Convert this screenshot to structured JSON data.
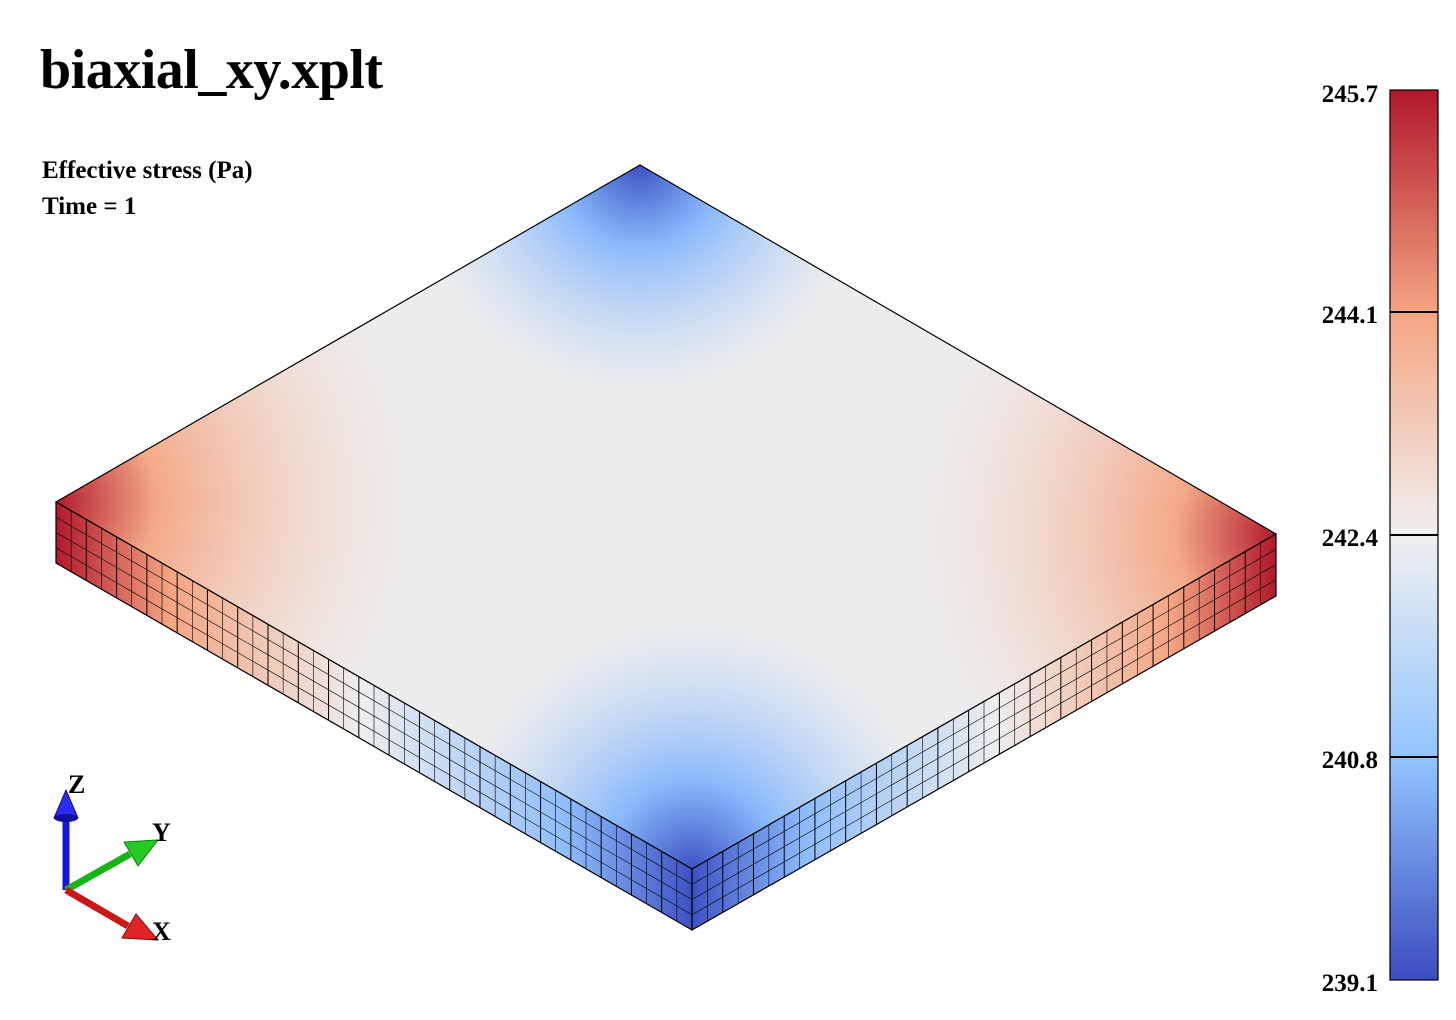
{
  "title": "biaxial_xy.xplt",
  "info": {
    "field": "Effective stress (Pa)",
    "time": "Time = 1"
  },
  "colorbar": {
    "labels": [
      "245.7",
      "244.1",
      "242.4",
      "240.8",
      "239.1"
    ],
    "min": 239.1,
    "max": 245.7,
    "colors": [
      "#b2182b",
      "#f4a582",
      "#f0f0f0",
      "#92c5fe",
      "#3b4cc0"
    ]
  },
  "triad": {
    "z_label": "Z",
    "y_label": "Y",
    "x_label": "X",
    "z_color": "#1515d8",
    "y_color": "#17b417",
    "x_color": "#c81818"
  }
}
